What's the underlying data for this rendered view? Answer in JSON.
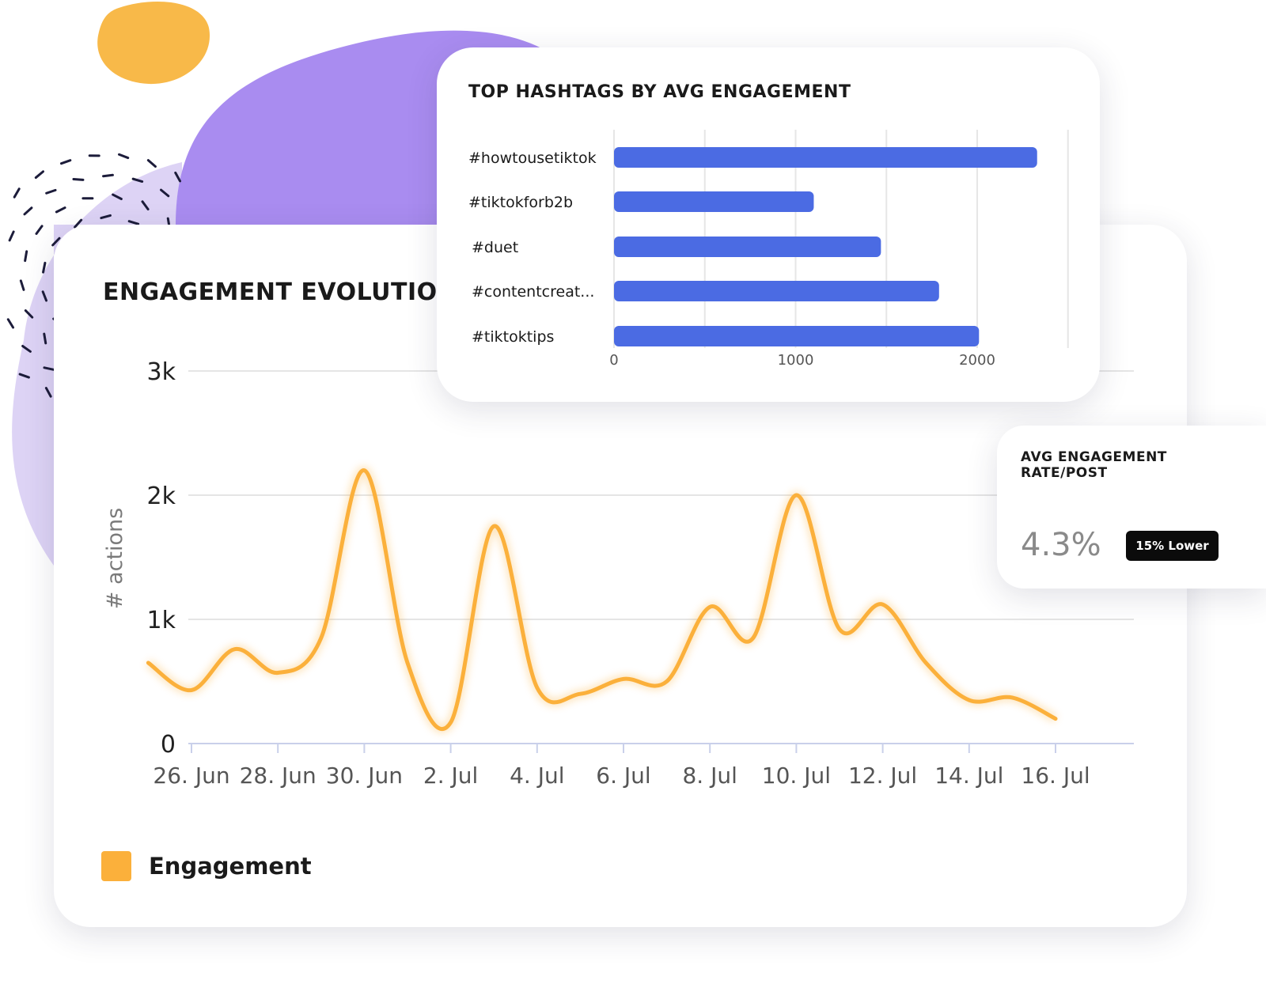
{
  "colors": {
    "accent_orange": "#fbb03b",
    "bar_blue": "#4b6be3",
    "blob_purple": "#a98cf0",
    "blob_lavender": "#ddd3f5",
    "blob_orange": "#f8b949",
    "badge_bg": "#0b0b0b"
  },
  "engagement_card": {
    "title": "ENGAGEMENT EVOLUTION",
    "legend_label": "Engagement"
  },
  "hashtags_card": {
    "title": "TOP HASHTAGS BY AVG ENGAGEMENT"
  },
  "kpi_card": {
    "label": "AVG ENGAGEMENT RATE/POST",
    "value": "4.3%",
    "badge": "15% Lower"
  },
  "chart_data": [
    {
      "type": "line",
      "ylabel": "# actions",
      "xlabel": "",
      "ylim": [
        0,
        3000
      ],
      "yticks": [
        0,
        1000,
        2000,
        3000
      ],
      "ytick_labels": [
        "0",
        "1k",
        "2k",
        "3k"
      ],
      "xticks": [
        "2023-06-26",
        "2023-06-28",
        "2023-06-30",
        "2023-07-02",
        "2023-07-04",
        "2023-07-06",
        "2023-07-08",
        "2023-07-10",
        "2023-07-12",
        "2023-07-14",
        "2023-07-16"
      ],
      "xtick_labels": [
        "26. Jun",
        "28. Jun",
        "30. Jun",
        "2. Jul",
        "4. Jul",
        "6. Jul",
        "8. Jul",
        "10. Jul",
        "12. Jul",
        "14. Jul",
        "16. Jul"
      ],
      "grid": true,
      "legend_position": "bottom-left",
      "series": [
        {
          "name": "Engagement",
          "color": "#fbb03b",
          "x": [
            "2023-06-25",
            "2023-06-26",
            "2023-06-27",
            "2023-06-28",
            "2023-06-29",
            "2023-06-30",
            "2023-07-01",
            "2023-07-02",
            "2023-07-03",
            "2023-07-04",
            "2023-07-05",
            "2023-07-06",
            "2023-07-07",
            "2023-07-08",
            "2023-07-09",
            "2023-07-10",
            "2023-07-11",
            "2023-07-12",
            "2023-07-13",
            "2023-07-14",
            "2023-07-15",
            "2023-07-16"
          ],
          "values": [
            650,
            430,
            760,
            570,
            850,
            2200,
            650,
            170,
            1750,
            450,
            400,
            520,
            500,
            1100,
            850,
            2000,
            920,
            1120,
            650,
            350,
            370,
            200
          ]
        }
      ]
    },
    {
      "type": "bar",
      "orientation": "horizontal",
      "categories": [
        "#howtousetiktok",
        "#tiktokforb2b",
        "#duet",
        "#contentcreat...",
        "#tiktoktips"
      ],
      "values": [
        2330,
        1100,
        1470,
        1790,
        2010
      ],
      "xlim": [
        0,
        2500
      ],
      "xticks": [
        0,
        1000,
        2000
      ],
      "xtick_labels": [
        "0",
        "1000",
        "2000"
      ],
      "grid": true,
      "color": "#4b6be3"
    }
  ]
}
